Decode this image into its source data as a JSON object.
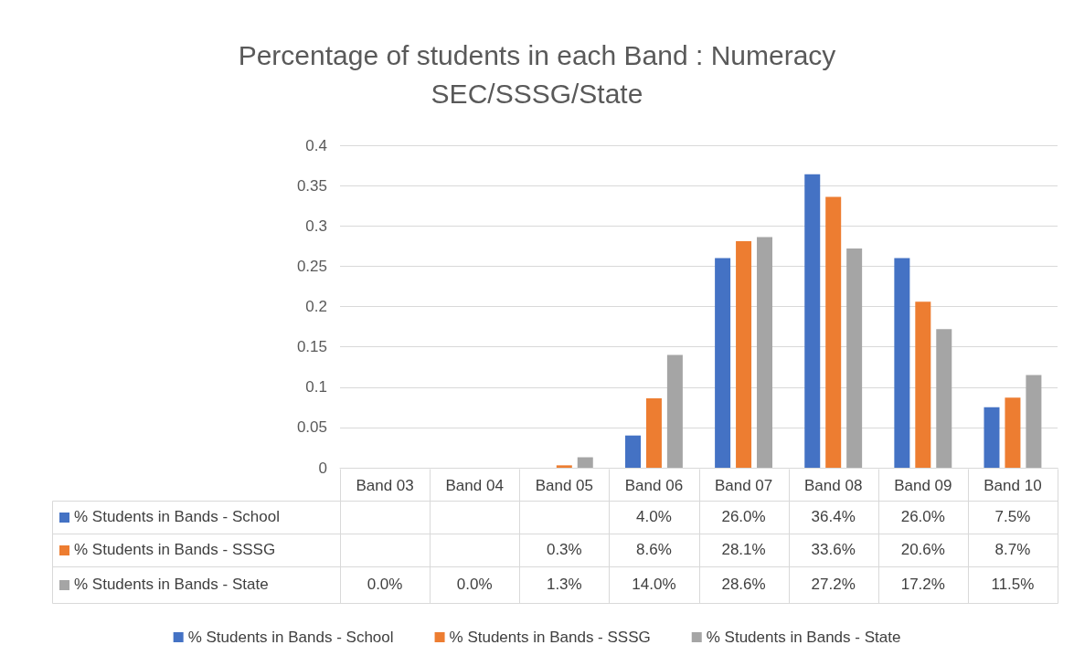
{
  "chart_data": {
    "type": "bar",
    "title": "Percentage of students in each Band : Numeracy",
    "subtitle": "SEC/SSSG/State",
    "categories": [
      "Band 03",
      "Band 04",
      "Band 05",
      "Band 06",
      "Band 07",
      "Band 08",
      "Band 09",
      "Band 10"
    ],
    "series": [
      {
        "name": "% Students in Bands - School",
        "color": "#4472c4",
        "values": [
          null,
          null,
          null,
          0.04,
          0.26,
          0.364,
          0.26,
          0.075
        ],
        "value_labels": [
          null,
          null,
          null,
          "4.0%",
          "26.0%",
          "36.4%",
          "26.0%",
          "7.5%"
        ]
      },
      {
        "name": "% Students in Bands - SSSG",
        "color": "#ed7d31",
        "values": [
          null,
          null,
          0.003,
          0.086,
          0.281,
          0.336,
          0.206,
          0.087
        ],
        "value_labels": [
          null,
          null,
          "0.3%",
          "8.6%",
          "28.1%",
          "33.6%",
          "20.6%",
          "8.7%"
        ]
      },
      {
        "name": "% Students in Bands - State",
        "color": "#a5a5a5",
        "values": [
          0,
          0,
          0.013,
          0.14,
          0.286,
          0.272,
          0.172,
          0.115
        ],
        "value_labels": [
          "0.0%",
          "0.0%",
          "1.3%",
          "14.0%",
          "28.6%",
          "27.2%",
          "17.2%",
          "11.5%"
        ]
      }
    ],
    "ylim": [
      0,
      0.4
    ],
    "yticks": [
      0,
      0.05,
      0.1,
      0.15,
      0.2,
      0.25,
      0.3,
      0.35,
      0.4
    ],
    "grid": "y",
    "legend": "bottom"
  }
}
